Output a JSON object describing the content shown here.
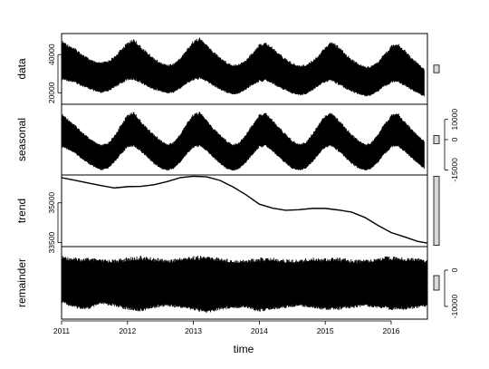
{
  "chart_data": {
    "type": "line",
    "title": "",
    "xlabel": "time",
    "x_ticks": [
      "2011",
      "2012",
      "2013",
      "2014",
      "2015",
      "2016"
    ],
    "xlim": [
      2011,
      2016.55
    ],
    "panels": [
      {
        "name": "data",
        "ylabel": "data",
        "ylim": [
          14000,
          51000
        ],
        "y_ticks": [
          20000,
          40000
        ],
        "y_tick_labels": [
          "20000",
          "40000"
        ],
        "tick_side": "left",
        "series": {
          "kind": "band",
          "x": [
            2011.0,
            2011.1,
            2011.2,
            2011.3,
            2011.4,
            2011.5,
            2011.6,
            2011.7,
            2011.8,
            2011.9,
            2012.0,
            2012.1,
            2012.2,
            2012.3,
            2012.4,
            2012.5,
            2012.6,
            2012.7,
            2012.8,
            2012.9,
            2013.0,
            2013.1,
            2013.2,
            2013.3,
            2013.4,
            2013.5,
            2013.6,
            2013.7,
            2013.8,
            2013.9,
            2014.0,
            2014.1,
            2014.2,
            2014.3,
            2014.4,
            2014.5,
            2014.6,
            2014.7,
            2014.8,
            2014.9,
            2015.0,
            2015.1,
            2015.2,
            2015.3,
            2015.4,
            2015.5,
            2015.6,
            2015.7,
            2015.8,
            2015.9,
            2016.0,
            2016.1,
            2016.2,
            2016.3,
            2016.4,
            2016.5
          ],
          "upper": [
            47500,
            45500,
            43500,
            41000,
            38500,
            36500,
            36000,
            37000,
            39000,
            43000,
            46500,
            48500,
            44500,
            41500,
            38500,
            36000,
            35000,
            35500,
            38500,
            43000,
            47500,
            49000,
            45500,
            42000,
            39000,
            36500,
            35000,
            35500,
            37500,
            41500,
            45500,
            46500,
            44000,
            41000,
            38000,
            36000,
            34500,
            35000,
            37000,
            40000,
            44500,
            47000,
            44500,
            41000,
            38000,
            35500,
            34000,
            34500,
            36500,
            40500,
            45000,
            46000,
            43000,
            39000,
            36000,
            33000
          ],
          "lower": [
            26500,
            26000,
            25000,
            23500,
            22000,
            20500,
            19500,
            20500,
            22500,
            24500,
            26500,
            26500,
            25000,
            23000,
            21500,
            20500,
            19500,
            20000,
            22000,
            24500,
            26500,
            27000,
            25500,
            23500,
            21500,
            20000,
            19000,
            19500,
            21500,
            24000,
            25500,
            26000,
            24500,
            22500,
            21000,
            19500,
            18500,
            19000,
            21000,
            23500,
            25500,
            26000,
            24000,
            22000,
            20500,
            19000,
            18000,
            18500,
            20500,
            23000,
            25000,
            25500,
            23500,
            21500,
            19500,
            18000
          ]
        },
        "range_bar_height": 4000
      },
      {
        "name": "seasonal",
        "ylabel": "seasonal",
        "ylim": [
          -17500,
          17500
        ],
        "y_ticks": [
          -15000,
          0,
          10000
        ],
        "y_tick_labels": [
          "-15000",
          "0",
          "10000"
        ],
        "tick_side": "right",
        "series": {
          "kind": "band",
          "x": [
            2011.0,
            2011.1,
            2011.2,
            2011.3,
            2011.4,
            2011.5,
            2011.6,
            2011.7,
            2011.8,
            2011.9,
            2012.0,
            2012.1,
            2012.2,
            2012.3,
            2012.4,
            2012.5,
            2012.6,
            2012.7,
            2012.8,
            2012.9,
            2013.0,
            2013.1,
            2013.2,
            2013.3,
            2013.4,
            2013.5,
            2013.6,
            2013.7,
            2013.8,
            2013.9,
            2014.0,
            2014.1,
            2014.2,
            2014.3,
            2014.4,
            2014.5,
            2014.6,
            2014.7,
            2014.8,
            2014.9,
            2015.0,
            2015.1,
            2015.2,
            2015.3,
            2015.4,
            2015.5,
            2015.6,
            2015.7,
            2015.8,
            2015.9,
            2016.0,
            2016.1,
            2016.2,
            2016.3,
            2016.4,
            2016.5
          ],
          "upper": [
            13000,
            10500,
            7500,
            4500,
            1500,
            -1000,
            -2500,
            -1500,
            2000,
            7500,
            12500,
            14000,
            9500,
            6000,
            3000,
            0,
            -2000,
            -1000,
            3000,
            8500,
            13000,
            14000,
            10000,
            6000,
            3000,
            0,
            -2000,
            -1000,
            3000,
            8000,
            12500,
            13500,
            10000,
            6500,
            3000,
            0,
            -2000,
            -1000,
            3000,
            8000,
            12500,
            13500,
            10000,
            6500,
            3000,
            0,
            -2000,
            -1000,
            3000,
            8000,
            12500,
            13500,
            9500,
            6000,
            2500,
            0
          ],
          "lower": [
            -4000,
            -5000,
            -7000,
            -9500,
            -12000,
            -14000,
            -15500,
            -14500,
            -11500,
            -7500,
            -4000,
            -3500,
            -6000,
            -9000,
            -12000,
            -14500,
            -15500,
            -14500,
            -11500,
            -7500,
            -4000,
            -3500,
            -6000,
            -9000,
            -12000,
            -14500,
            -15500,
            -14500,
            -11500,
            -7500,
            -4000,
            -3500,
            -6000,
            -9000,
            -12000,
            -14500,
            -15500,
            -14500,
            -11500,
            -7500,
            -4000,
            -3500,
            -6000,
            -9000,
            -12000,
            -14500,
            -15500,
            -14500,
            -11500,
            -7500,
            -4000,
            -3500,
            -6000,
            -9000,
            -12000,
            -14500
          ]
        },
        "range_bar_height": 4000
      },
      {
        "name": "trend",
        "ylabel": "trend",
        "ylim": [
          33350,
          36050
        ],
        "y_ticks": [
          33500,
          35000
        ],
        "y_tick_labels": [
          "33500",
          "35000"
        ],
        "tick_side": "left",
        "series": {
          "kind": "line",
          "x": [
            2011.0,
            2011.2,
            2011.4,
            2011.6,
            2011.8,
            2012.0,
            2012.2,
            2012.4,
            2012.6,
            2012.8,
            2013.0,
            2013.2,
            2013.4,
            2013.6,
            2013.8,
            2014.0,
            2014.2,
            2014.4,
            2014.6,
            2014.8,
            2015.0,
            2015.2,
            2015.4,
            2015.6,
            2015.8,
            2016.0,
            2016.2,
            2016.4,
            2016.55
          ],
          "y": [
            35950,
            35850,
            35750,
            35650,
            35560,
            35610,
            35620,
            35680,
            35800,
            35950,
            36000,
            35980,
            35850,
            35600,
            35300,
            34950,
            34800,
            34720,
            34740,
            34790,
            34790,
            34730,
            34650,
            34450,
            34150,
            33880,
            33720,
            33550,
            33480
          ]
        },
        "range_bar_height": 2600
      },
      {
        "name": "remainder",
        "ylabel": "remainder",
        "ylim": [
          -13500,
          6500
        ],
        "y_ticks": [
          -10000,
          0
        ],
        "y_tick_labels": [
          "-10000",
          "0"
        ],
        "tick_side": "right",
        "zero_line": true,
        "series": {
          "kind": "band",
          "x": [
            2011.0,
            2011.2,
            2011.4,
            2011.6,
            2011.8,
            2012.0,
            2012.2,
            2012.4,
            2012.6,
            2012.8,
            2013.0,
            2013.2,
            2013.4,
            2013.6,
            2013.8,
            2014.0,
            2014.2,
            2014.4,
            2014.6,
            2014.8,
            2015.0,
            2015.2,
            2015.4,
            2015.6,
            2015.8,
            2016.0,
            2016.2,
            2016.4,
            2016.55
          ],
          "upper": [
            4000,
            3500,
            3500,
            3000,
            3000,
            3500,
            4000,
            3500,
            3000,
            3500,
            4000,
            4000,
            3500,
            3000,
            3000,
            3500,
            3500,
            3000,
            3000,
            3500,
            3500,
            3500,
            3000,
            3000,
            3500,
            4000,
            3500,
            3500,
            3000
          ],
          "lower": [
            -9000,
            -10500,
            -11000,
            -9500,
            -10000,
            -11000,
            -11500,
            -10500,
            -10000,
            -10500,
            -11000,
            -12000,
            -11000,
            -10500,
            -10500,
            -11500,
            -11000,
            -10500,
            -10000,
            -10500,
            -11000,
            -11000,
            -10500,
            -10000,
            -10500,
            -11000,
            -11000,
            -10500,
            -10000
          ]
        },
        "range_bar_height": 4000
      }
    ]
  }
}
